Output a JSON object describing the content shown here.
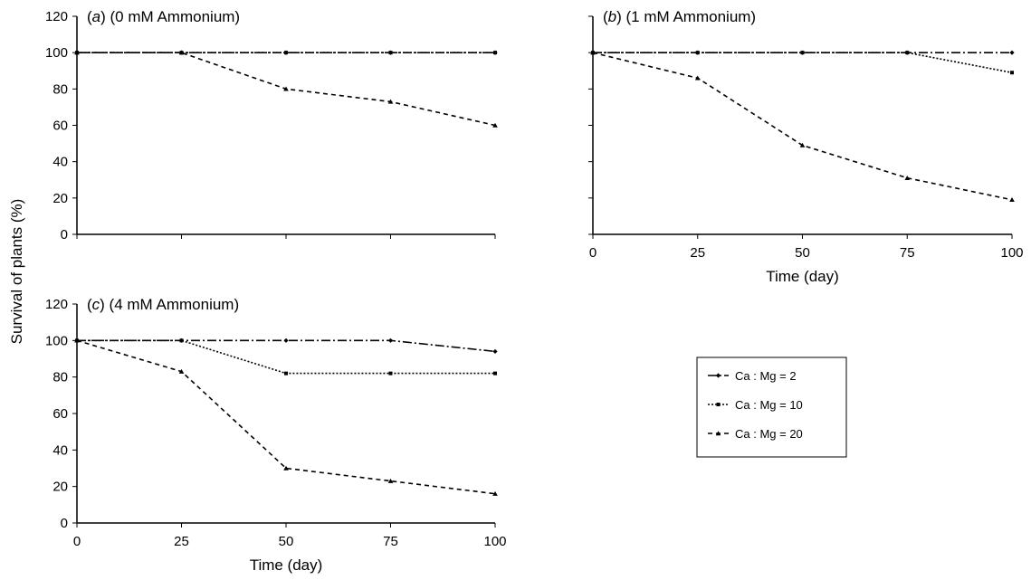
{
  "ylabel": "Survival of plants (%)",
  "chart_data": [
    {
      "type": "line",
      "panel_letter": "a",
      "title": "(0 mM Ammonium)",
      "x": [
        0,
        25,
        50,
        75,
        100
      ],
      "xlabel": "",
      "show_x_ticks": false,
      "ylim": [
        0,
        120
      ],
      "yticks": [
        0,
        20,
        40,
        60,
        80,
        100,
        120
      ],
      "grid": false,
      "series": [
        {
          "name": "Ca : Mg = 2",
          "values": [
            100,
            100,
            100,
            100,
            100
          ]
        },
        {
          "name": "Ca : Mg = 10",
          "values": [
            100,
            100,
            100,
            100,
            100
          ]
        },
        {
          "name": "Ca : Mg = 20",
          "values": [
            100,
            100,
            80,
            73,
            60
          ]
        }
      ]
    },
    {
      "type": "line",
      "panel_letter": "b",
      "title": "(1 mM Ammonium)",
      "x": [
        0,
        25,
        50,
        75,
        100
      ],
      "xlabel": "Time (day)",
      "show_x_ticks": true,
      "xticks": [
        "0",
        "25",
        "50",
        "75",
        "100"
      ],
      "ylim": [
        0,
        120
      ],
      "grid": false,
      "series": [
        {
          "name": "Ca : Mg = 2",
          "values": [
            100,
            100,
            100,
            100,
            100
          ]
        },
        {
          "name": "Ca : Mg = 10",
          "values": [
            100,
            100,
            100,
            100,
            89
          ]
        },
        {
          "name": "Ca : Mg = 20",
          "values": [
            100,
            86,
            49,
            31,
            19
          ]
        }
      ]
    },
    {
      "type": "line",
      "panel_letter": "c",
      "title": "(4 mM Ammonium)",
      "x": [
        0,
        25,
        50,
        75,
        100
      ],
      "xlabel": "Time (day)",
      "show_x_ticks": true,
      "xticks": [
        "0",
        "25",
        "50",
        "75",
        "100"
      ],
      "ylim": [
        0,
        120
      ],
      "yticks": [
        0,
        20,
        40,
        60,
        80,
        100,
        120
      ],
      "grid": false,
      "series": [
        {
          "name": "Ca : Mg = 2",
          "values": [
            100,
            100,
            100,
            100,
            94
          ]
        },
        {
          "name": "Ca : Mg = 10",
          "values": [
            100,
            100,
            82,
            82,
            82
          ]
        },
        {
          "name": "Ca : Mg = 20",
          "values": [
            100,
            83,
            30,
            23,
            16
          ]
        }
      ]
    }
  ],
  "legend": {
    "placement": "right-middle",
    "entries": [
      {
        "label": "Ca : Mg = 2",
        "marker": "diamond",
        "dash": "dash-dot"
      },
      {
        "label": "Ca : Mg = 10",
        "marker": "square",
        "dash": "dotted"
      },
      {
        "label": "Ca : Mg = 20",
        "marker": "triangle",
        "dash": "dashed"
      }
    ]
  },
  "colors": {
    "ink": "#000000",
    "background": "#ffffff"
  }
}
